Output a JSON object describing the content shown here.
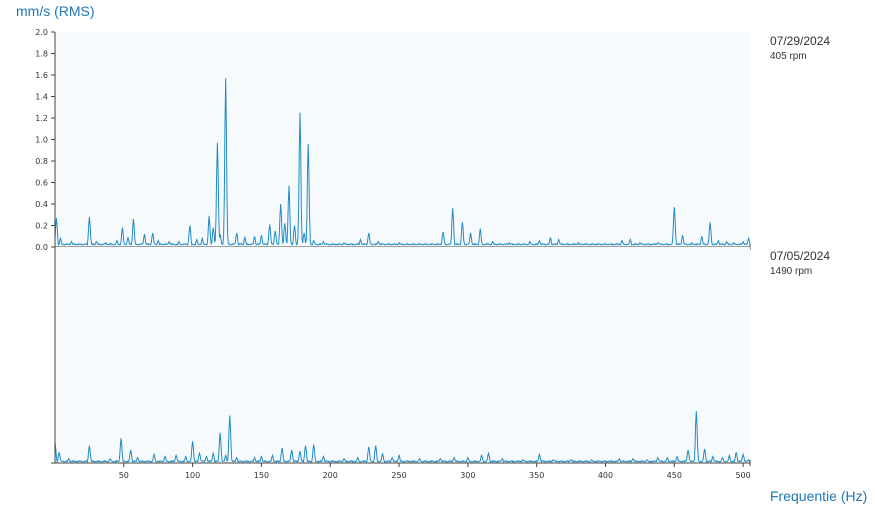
{
  "y_axis_label": "mm/s (RMS)",
  "x_axis_label": "Frequentie (Hz)",
  "chart_data": {
    "type": "line",
    "xlabel": "Frequentie (Hz)",
    "ylabel": "mm/s (RMS)",
    "xlim": [
      0,
      505
    ],
    "x_ticks": [
      50,
      100,
      150,
      200,
      250,
      300,
      350,
      400,
      450,
      500
    ],
    "y_ticks": [
      0.0,
      0.2,
      0.4,
      0.6,
      0.8,
      1.0,
      1.2,
      1.4,
      1.6,
      1.8,
      2.0
    ],
    "line_color": "#1f8bc4",
    "panels": [
      {
        "date": "07/29/2024",
        "rpm": "405 rpm",
        "ylim": [
          0,
          2.0
        ],
        "show_y_ticks": true,
        "baseline": 0.02,
        "peaks": [
          [
            1,
            0.27
          ],
          [
            4,
            0.08
          ],
          [
            12,
            0.05
          ],
          [
            25,
            0.28
          ],
          [
            30,
            0.05
          ],
          [
            37,
            0.04
          ],
          [
            45,
            0.06
          ],
          [
            49,
            0.18
          ],
          [
            53,
            0.09
          ],
          [
            57,
            0.26
          ],
          [
            65,
            0.12
          ],
          [
            71,
            0.13
          ],
          [
            75,
            0.06
          ],
          [
            83,
            0.05
          ],
          [
            90,
            0.05
          ],
          [
            98,
            0.2
          ],
          [
            103,
            0.07
          ],
          [
            107,
            0.08
          ],
          [
            112,
            0.29
          ],
          [
            115,
            0.18
          ],
          [
            118,
            0.97
          ],
          [
            120,
            0.12
          ],
          [
            124,
            1.57
          ],
          [
            132,
            0.13
          ],
          [
            138,
            0.09
          ],
          [
            145,
            0.1
          ],
          [
            150,
            0.11
          ],
          [
            156,
            0.21
          ],
          [
            160,
            0.15
          ],
          [
            164,
            0.4
          ],
          [
            167,
            0.22
          ],
          [
            170,
            0.57
          ],
          [
            174,
            0.2
          ],
          [
            178,
            1.25
          ],
          [
            181,
            0.13
          ],
          [
            184,
            0.96
          ],
          [
            188,
            0.06
          ],
          [
            195,
            0.05
          ],
          [
            210,
            0.04
          ],
          [
            222,
            0.07
          ],
          [
            228,
            0.13
          ],
          [
            235,
            0.05
          ],
          [
            250,
            0.04
          ],
          [
            265,
            0.03
          ],
          [
            282,
            0.14
          ],
          [
            289,
            0.36
          ],
          [
            296,
            0.23
          ],
          [
            302,
            0.13
          ],
          [
            309,
            0.17
          ],
          [
            318,
            0.05
          ],
          [
            330,
            0.04
          ],
          [
            345,
            0.05
          ],
          [
            352,
            0.06
          ],
          [
            360,
            0.09
          ],
          [
            366,
            0.07
          ],
          [
            380,
            0.04
          ],
          [
            395,
            0.03
          ],
          [
            412,
            0.06
          ],
          [
            418,
            0.07
          ],
          [
            425,
            0.04
          ],
          [
            438,
            0.04
          ],
          [
            450,
            0.37
          ],
          [
            456,
            0.11
          ],
          [
            463,
            0.04
          ],
          [
            470,
            0.1
          ],
          [
            476,
            0.23
          ],
          [
            482,
            0.06
          ],
          [
            488,
            0.05
          ],
          [
            493,
            0.04
          ],
          [
            500,
            0.05
          ],
          [
            504,
            0.08
          ]
        ]
      },
      {
        "date": "07/05/2024",
        "rpm": "1490 rpm",
        "ylim": [
          0,
          2.0
        ],
        "show_y_ticks": false,
        "baseline": 0.01,
        "peaks": [
          [
            0,
            0.19
          ],
          [
            3,
            0.1
          ],
          [
            10,
            0.04
          ],
          [
            25,
            0.16
          ],
          [
            40,
            0.04
          ],
          [
            48,
            0.23
          ],
          [
            55,
            0.12
          ],
          [
            60,
            0.05
          ],
          [
            72,
            0.08
          ],
          [
            80,
            0.06
          ],
          [
            88,
            0.07
          ],
          [
            95,
            0.06
          ],
          [
            100,
            0.2
          ],
          [
            105,
            0.09
          ],
          [
            110,
            0.06
          ],
          [
            115,
            0.09
          ],
          [
            120,
            0.28
          ],
          [
            124,
            0.07
          ],
          [
            127,
            0.44
          ],
          [
            132,
            0.05
          ],
          [
            145,
            0.05
          ],
          [
            150,
            0.06
          ],
          [
            158,
            0.07
          ],
          [
            165,
            0.14
          ],
          [
            172,
            0.12
          ],
          [
            178,
            0.11
          ],
          [
            182,
            0.16
          ],
          [
            188,
            0.17
          ],
          [
            195,
            0.06
          ],
          [
            210,
            0.04
          ],
          [
            220,
            0.05
          ],
          [
            228,
            0.15
          ],
          [
            233,
            0.16
          ],
          [
            238,
            0.09
          ],
          [
            245,
            0.05
          ],
          [
            250,
            0.07
          ],
          [
            265,
            0.04
          ],
          [
            280,
            0.04
          ],
          [
            290,
            0.05
          ],
          [
            300,
            0.05
          ],
          [
            310,
            0.07
          ],
          [
            315,
            0.09
          ],
          [
            325,
            0.04
          ],
          [
            340,
            0.03
          ],
          [
            352,
            0.08
          ],
          [
            362,
            0.03
          ],
          [
            375,
            0.03
          ],
          [
            390,
            0.03
          ],
          [
            410,
            0.04
          ],
          [
            420,
            0.04
          ],
          [
            430,
            0.03
          ],
          [
            438,
            0.05
          ],
          [
            445,
            0.05
          ],
          [
            452,
            0.06
          ],
          [
            460,
            0.12
          ],
          [
            466,
            0.48
          ],
          [
            472,
            0.13
          ],
          [
            478,
            0.06
          ],
          [
            485,
            0.05
          ],
          [
            490,
            0.07
          ],
          [
            495,
            0.1
          ],
          [
            500,
            0.08
          ],
          [
            504,
            0.03
          ]
        ]
      }
    ]
  }
}
